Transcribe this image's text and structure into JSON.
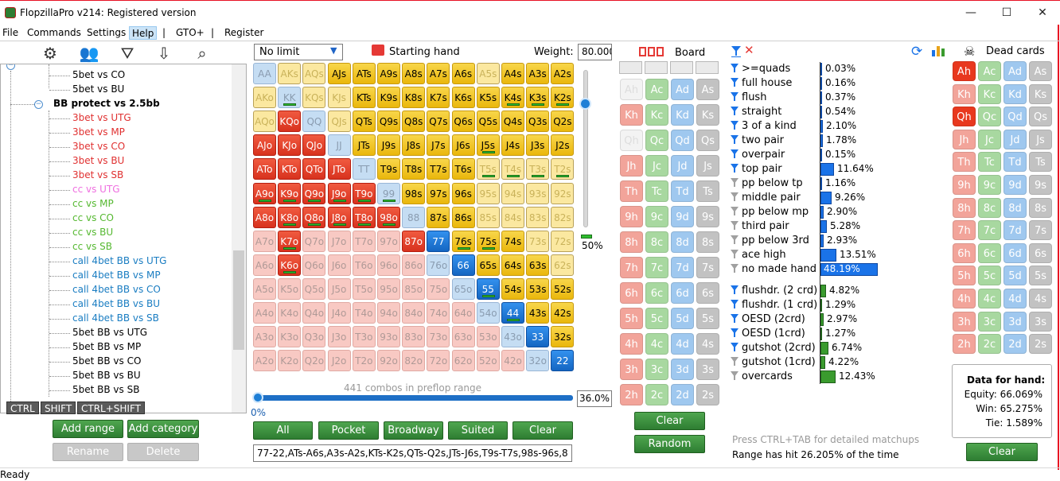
{
  "window": {
    "title": "FlopzillaPro v214: Registered version",
    "controls": [
      "—",
      "☐",
      "✕"
    ]
  },
  "menu": {
    "items": [
      "File",
      "Commands",
      "Settings",
      "Help",
      "GTO+",
      "Register"
    ],
    "sep": "|"
  },
  "toolbar_icons": [
    "gear-icon",
    "users-icon",
    "filter-add-icon",
    "import-icon",
    "search-icon"
  ],
  "tree": {
    "nodes": [
      {
        "label": "5bet vs CO",
        "color": "#000",
        "indent": 90
      },
      {
        "label": "5bet vs BU",
        "color": "#000",
        "indent": 90
      },
      {
        "label": "BB protect vs 2.5bb",
        "color": "#000",
        "indent": 66,
        "bold": true,
        "expander": true
      },
      {
        "label": "3bet vs UTG",
        "color": "#e03030",
        "indent": 90
      },
      {
        "label": "3bet vs MP",
        "color": "#e03030",
        "indent": 90
      },
      {
        "label": "3bet vs CO",
        "color": "#e03030",
        "indent": 90
      },
      {
        "label": "3bet vs BU",
        "color": "#e03030",
        "indent": 90
      },
      {
        "label": "3bet vs SB",
        "color": "#e03030",
        "indent": 90
      },
      {
        "label": "cc vs UTG",
        "color": "#ef6fe0",
        "indent": 90
      },
      {
        "label": "cc vs MP",
        "color": "#55b830",
        "indent": 90
      },
      {
        "label": "cc vs CO",
        "color": "#55b830",
        "indent": 90
      },
      {
        "label": "cc vs BU",
        "color": "#55b830",
        "indent": 90
      },
      {
        "label": "cc vs SB",
        "color": "#55b830",
        "indent": 90
      },
      {
        "label": "call 4bet BB vs UTG",
        "color": "#1a7dc2",
        "indent": 90
      },
      {
        "label": "call 4bet BB vs MP",
        "color": "#1a7dc2",
        "indent": 90
      },
      {
        "label": "call 4bet BB vs CO",
        "color": "#1a7dc2",
        "indent": 90
      },
      {
        "label": "call 4bet BB vs BU",
        "color": "#1a7dc2",
        "indent": 90
      },
      {
        "label": "call 4bet BB vs SB",
        "color": "#1a7dc2",
        "indent": 90
      },
      {
        "label": "5bet BB vs UTG",
        "color": "#000",
        "indent": 90
      },
      {
        "label": "5bet BB vs MP",
        "color": "#000",
        "indent": 90
      },
      {
        "label": "5bet BB vs CO",
        "color": "#000",
        "indent": 90
      },
      {
        "label": "5bet BB vs BU",
        "color": "#000",
        "indent": 90
      },
      {
        "label": "5bet BB vs SB",
        "color": "#000",
        "indent": 90
      }
    ],
    "modkeys": [
      "CTRL",
      "SHIFT",
      "CTRL+SHIFT"
    ],
    "buttons": {
      "add_range": "Add range",
      "add_category": "Add category",
      "rename": "Rename",
      "delete": "Delete"
    }
  },
  "matrix": {
    "limit": "No limit",
    "starting_hand_label": "Starting hand",
    "weight_label": "Weight:",
    "weight_value": "80.000",
    "ranks": [
      "A",
      "K",
      "Q",
      "J",
      "T",
      "9",
      "8",
      "7",
      "6",
      "5",
      "4",
      "3",
      "2"
    ],
    "grid": [
      "bhhyyyyyyhyyy",
      "hbhhyyyyyyyyy",
      "hrbhyyyyyyyyy",
      "rrrbyyyyyyyyy",
      "rrrrbyyyyhhhh",
      "rrrrrbyyyhhhh",
      "rrrrrrbyyhhhh",
      "prpppprByyyhh",
      "prpppppbByyyh",
      "ppppppppbByyy",
      "pppppppppbByy",
      "ppppppppppbBy",
      "pppppppppppbB"
    ],
    "bars": [
      "1-1",
      "1-10",
      "1-11",
      "1-12",
      "5-0",
      "5-1",
      "5-2",
      "5-3",
      "5-4",
      "5-5",
      "6-1",
      "6-2",
      "6-3",
      "6-4",
      "6-5",
      "7-1",
      "8-1",
      "4-9",
      "4-10",
      "4-11",
      "4-12",
      "3-9",
      "7-8",
      "7-9",
      "9-9",
      "10-10"
    ],
    "combos_label": "441 combos in preflop range",
    "slider_pct": "0%",
    "pct_box": "36.0%",
    "vslider_pct": "50%",
    "buttons": {
      "all": "All",
      "pocket": "Pocket",
      "broadway": "Broadway",
      "suited": "Suited",
      "clear": "Clear"
    },
    "range_text": "77-22,ATs-A6s,A3s-A2s,KTs-K2s,QTs-Q2s,JTs-J6s,T9s-T7s,98s-96s,8"
  },
  "board": {
    "label": "Board",
    "buttons": {
      "clear": "Clear",
      "random": "Random"
    },
    "suits": [
      "h",
      "c",
      "d",
      "s"
    ],
    "colors": {
      "h": "#f2a49a",
      "c": "#a8d8a0",
      "d": "#9fc8ef",
      "s": "#c2c2c2"
    },
    "used": [
      "A-h",
      "Q-h"
    ]
  },
  "stats": {
    "rows": [
      {
        "label": ">=quads",
        "value": "0.03%",
        "pct": 0.03,
        "f": "b"
      },
      {
        "label": "full house",
        "value": "0.16%",
        "pct": 0.16,
        "f": "b"
      },
      {
        "label": "flush",
        "value": "0.37%",
        "pct": 0.37,
        "f": "b"
      },
      {
        "label": "straight",
        "value": "0.54%",
        "pct": 0.54,
        "f": "b"
      },
      {
        "label": "3 of a kind",
        "value": "2.10%",
        "pct": 2.1,
        "f": "b"
      },
      {
        "label": "two pair",
        "value": "1.78%",
        "pct": 1.78,
        "f": "b"
      },
      {
        "label": "overpair",
        "value": "0.15%",
        "pct": 0.15,
        "f": "b"
      },
      {
        "label": "top pair",
        "value": "11.64%",
        "pct": 11.64,
        "f": "b"
      },
      {
        "label": "pp below tp",
        "value": "1.16%",
        "pct": 1.16,
        "f": "g"
      },
      {
        "label": "middle pair",
        "value": "9.26%",
        "pct": 9.26,
        "f": "g"
      },
      {
        "label": "pp below mp",
        "value": "2.90%",
        "pct": 2.9,
        "f": "g"
      },
      {
        "label": "third pair",
        "value": "5.28%",
        "pct": 5.28,
        "f": "g"
      },
      {
        "label": "pp below 3rd",
        "value": "2.93%",
        "pct": 2.93,
        "f": "g"
      },
      {
        "label": "ace high",
        "value": "13.51%",
        "pct": 13.51,
        "f": "g"
      },
      {
        "label": "no made hand",
        "value": "48.19%",
        "pct": 48.19,
        "f": "g"
      }
    ],
    "draws": [
      {
        "label": "flushdr. (2 crd)",
        "value": "4.82%",
        "pct": 4.82,
        "f": "b"
      },
      {
        "label": "flushdr. (1 crd)",
        "value": "1.29%",
        "pct": 1.29,
        "f": "b"
      },
      {
        "label": "OESD (2crd)",
        "value": "2.97%",
        "pct": 2.97,
        "f": "b"
      },
      {
        "label": "OESD (1crd)",
        "value": "1.27%",
        "pct": 1.27,
        "f": "b"
      },
      {
        "label": "gutshot (2crd)",
        "value": "6.74%",
        "pct": 6.74,
        "f": "b"
      },
      {
        "label": "gutshot (1crd)",
        "value": "4.22%",
        "pct": 4.22,
        "f": "g"
      },
      {
        "label": "overcards",
        "value": "12.43%",
        "pct": 12.43,
        "f": "g"
      }
    ],
    "hint": "Press CTRL+TAB for detailed matchups",
    "hit": "Range has hit 26.205% of the time"
  },
  "dead": {
    "label": "Dead cards",
    "dark": [
      "A-h",
      "Q-h"
    ],
    "equity_title": "Data for hand:",
    "equity": "Equity: 66.069%",
    "win": "Win: 65.275%",
    "tie": "Tie: 1.589%",
    "clear": "Clear"
  },
  "status": "Ready"
}
